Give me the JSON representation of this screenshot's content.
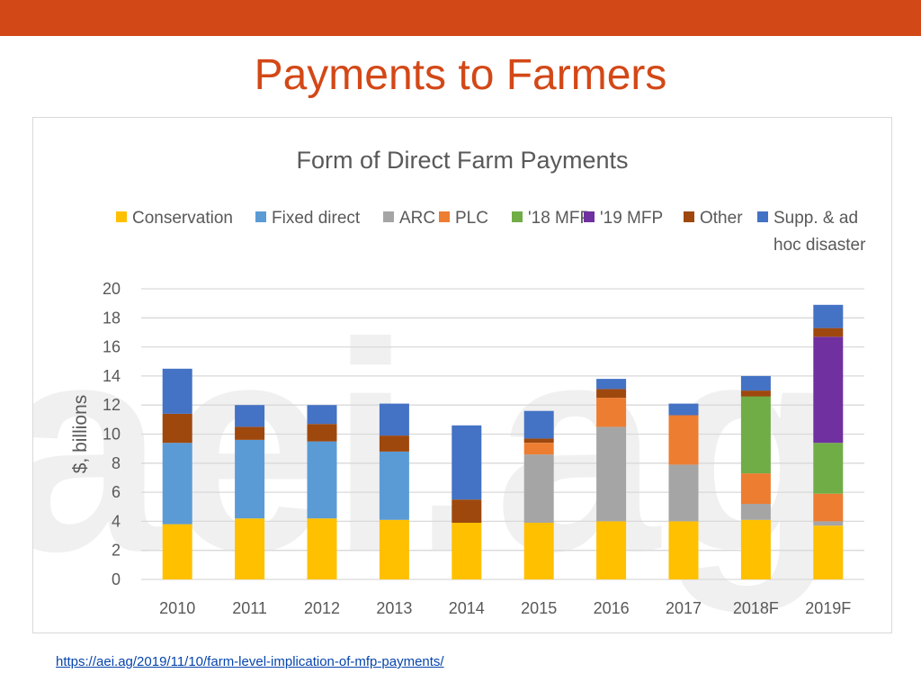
{
  "slide": {
    "title": "Payments to Farmers",
    "source_url": "https://aei.ag/2019/11/10/farm-level-implication-of-mfp-payments/",
    "watermark": "aei.ag"
  },
  "colors": {
    "top_bar": "#d34817",
    "title": "#d34817"
  },
  "chart_data": {
    "type": "bar",
    "stacked": true,
    "title": "Form of Direct Farm Payments",
    "ylabel": "$, billions",
    "xlabel": "",
    "ylim": [
      0,
      20
    ],
    "yticks": [
      0,
      2,
      4,
      6,
      8,
      10,
      12,
      14,
      16,
      18,
      20
    ],
    "grid": true,
    "legend_position": "top",
    "categories": [
      "2010",
      "2011",
      "2012",
      "2013",
      "2014",
      "2015",
      "2016",
      "2017",
      "2018F",
      "2019F"
    ],
    "series": [
      {
        "name": "Conservation",
        "color": "#ffc000",
        "values": [
          3.8,
          4.2,
          4.2,
          4.1,
          3.9,
          3.9,
          4.0,
          4.0,
          4.1,
          3.7
        ]
      },
      {
        "name": "Fixed direct",
        "color": "#5b9bd5",
        "values": [
          5.6,
          5.4,
          5.3,
          4.7,
          0,
          0,
          0,
          0,
          0,
          0
        ]
      },
      {
        "name": "ARC",
        "color": "#a5a5a5",
        "values": [
          0,
          0,
          0,
          0,
          0,
          4.7,
          6.5,
          3.9,
          1.1,
          0.3
        ]
      },
      {
        "name": "PLC",
        "color": "#ed7d31",
        "values": [
          0,
          0,
          0,
          0,
          0,
          0.8,
          2.0,
          3.4,
          2.1,
          1.9
        ]
      },
      {
        "name": "'18 MFP",
        "color": "#70ad47",
        "values": [
          0,
          0,
          0,
          0,
          0,
          0,
          0,
          0,
          5.3,
          3.5
        ]
      },
      {
        "name": "'19 MFP",
        "color": "#7030a0",
        "values": [
          0,
          0,
          0,
          0,
          0,
          0,
          0,
          0,
          0,
          7.3
        ]
      },
      {
        "name": "Other",
        "color": "#9e480e",
        "values": [
          2.0,
          0.9,
          1.2,
          1.1,
          1.6,
          0.3,
          0.6,
          0,
          0.4,
          0.6
        ]
      },
      {
        "name": "Supp. & ad hoc disaster",
        "color": "#4472c4",
        "values": [
          3.1,
          1.5,
          1.3,
          2.2,
          5.1,
          1.9,
          0.7,
          0.8,
          1.0,
          1.6
        ]
      }
    ]
  }
}
